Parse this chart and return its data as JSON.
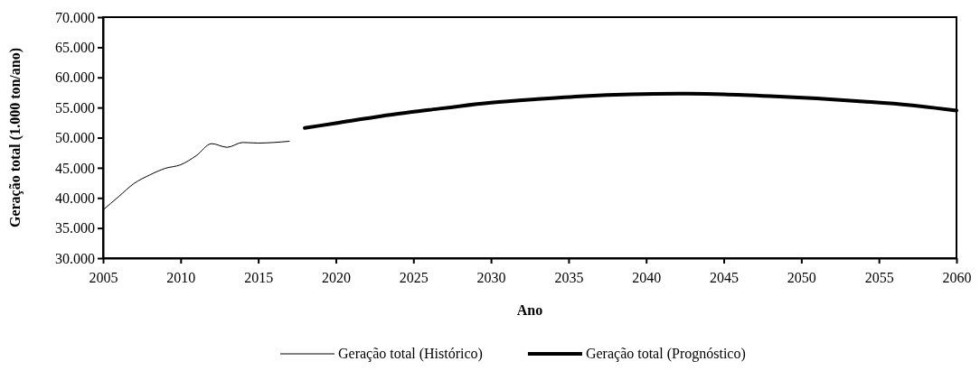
{
  "chart_data": {
    "type": "line",
    "xlabel": "Ano",
    "ylabel": "Geração total (1.000 ton/ano)",
    "xlim": [
      2005,
      2060
    ],
    "xticks": [
      2005,
      2010,
      2015,
      2020,
      2025,
      2030,
      2035,
      2040,
      2045,
      2050,
      2055,
      2060
    ],
    "ylim": [
      30000,
      70000
    ],
    "yticks": [
      {
        "value": 30000,
        "label": "30.000"
      },
      {
        "value": 35000,
        "label": "35.000"
      },
      {
        "value": 40000,
        "label": "40.000"
      },
      {
        "value": 45000,
        "label": "45.000"
      },
      {
        "value": 50000,
        "label": "50.000"
      },
      {
        "value": 55000,
        "label": "55.000"
      },
      {
        "value": 60000,
        "label": "60.000"
      },
      {
        "value": 65000,
        "label": "65.000"
      },
      {
        "value": 70000,
        "label": "70.000"
      }
    ],
    "grid": false,
    "legend": "bottom",
    "marker": "none",
    "series": [
      {
        "name": "Geração total (Histórico)",
        "color": "#000000",
        "x": [
          2005,
          2006,
          2007,
          2008,
          2009,
          2010,
          2011,
          2012,
          2013,
          2014,
          2015,
          2016,
          2017
        ],
        "values": [
          38000,
          40200,
          42400,
          43800,
          44900,
          45500,
          47000,
          49000,
          48400,
          49200,
          49100,
          49200,
          49400
        ]
      },
      {
        "name": "Geração total (Prognóstico)",
        "color": "#000000",
        "x": [
          2018,
          2020,
          2023,
          2026,
          2030,
          2033,
          2036,
          2039,
          2042,
          2045,
          2048,
          2051,
          2054,
          2057,
          2060
        ],
        "values": [
          51600,
          52400,
          53600,
          54600,
          55800,
          56400,
          56900,
          57200,
          57300,
          57200,
          56900,
          56500,
          56000,
          55400,
          54500
        ]
      }
    ]
  }
}
